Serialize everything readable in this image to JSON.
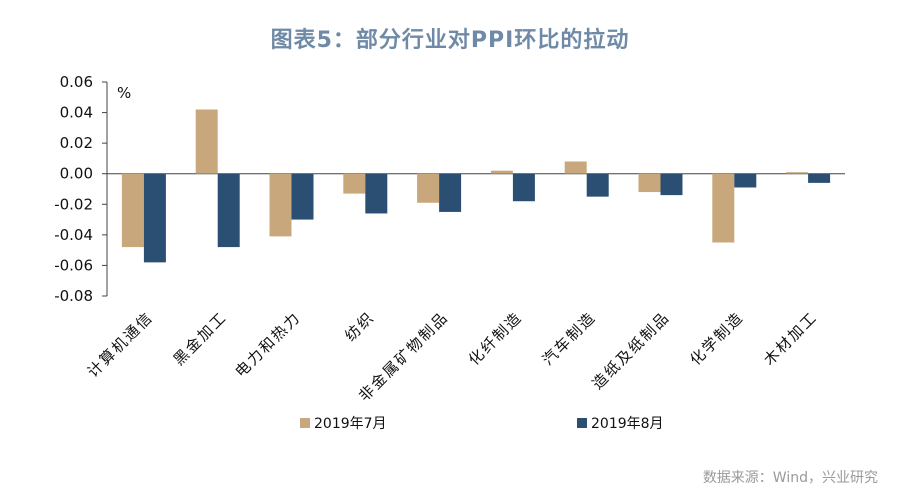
{
  "chart_data": {
    "type": "bar",
    "title": "图表5：部分行业对PPI环比的拉动",
    "unit_label": "%",
    "categories": [
      "计算机通信",
      "黑金加工",
      "电力和热力",
      "纺织",
      "非金属矿物制品",
      "化纤制造",
      "汽车制造",
      "造纸及纸制品",
      "化学制造",
      "木材加工"
    ],
    "series": [
      {
        "name": "2019年7月",
        "color": "#c9a77c",
        "values": [
          -0.048,
          0.042,
          -0.041,
          -0.013,
          -0.019,
          0.002,
          0.008,
          -0.012,
          -0.045,
          0.001
        ]
      },
      {
        "name": "2019年8月",
        "color": "#2b4f72",
        "values": [
          -0.058,
          -0.048,
          -0.03,
          -0.026,
          -0.025,
          -0.018,
          -0.015,
          -0.014,
          -0.009,
          -0.006
        ]
      }
    ],
    "ylim": [
      -0.08,
      0.06
    ],
    "yticks": [
      "0.06",
      "0.04",
      "0.02",
      "0.00",
      "-0.02",
      "-0.04",
      "-0.06",
      "-0.08"
    ],
    "legend_position": "bottom",
    "grid": false
  },
  "source": "数据来源：Wind，兴业研究"
}
